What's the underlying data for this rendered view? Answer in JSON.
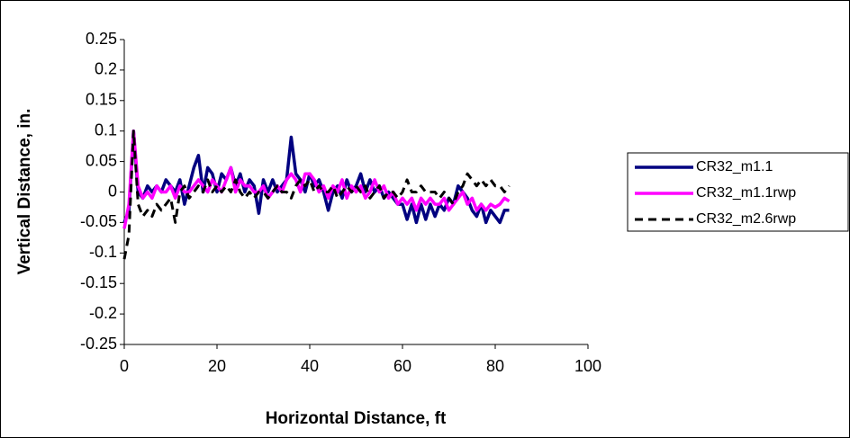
{
  "chart_data": {
    "type": "line",
    "x_label": "Horizontal Distance, ft",
    "y_label": "Vertical Distance, in.",
    "x": [
      0,
      1,
      2,
      3,
      4,
      5,
      6,
      7,
      8,
      9,
      10,
      11,
      12,
      13,
      14,
      15,
      16,
      17,
      18,
      19,
      20,
      21,
      22,
      23,
      24,
      25,
      26,
      27,
      28,
      29,
      30,
      31,
      32,
      33,
      34,
      35,
      36,
      37,
      38,
      39,
      40,
      41,
      42,
      43,
      44,
      45,
      46,
      47,
      48,
      49,
      50,
      51,
      52,
      53,
      54,
      55,
      56,
      57,
      58,
      59,
      60,
      61,
      62,
      63,
      64,
      65,
      66,
      67,
      68,
      69,
      70,
      71,
      72,
      73,
      74,
      75,
      76,
      77,
      78,
      79,
      80,
      81,
      82,
      83
    ],
    "series": [
      {
        "name": "CR32_m1.1",
        "color": "#000080",
        "dash": false,
        "values": [
          -0.05,
          -0.03,
          0.1,
          0.0,
          -0.01,
          0.01,
          0.0,
          0.01,
          0.0,
          0.02,
          0.01,
          0.0,
          0.02,
          -0.02,
          0.01,
          0.04,
          0.06,
          0.0,
          0.04,
          0.03,
          0.0,
          0.03,
          0.02,
          0.04,
          0.01,
          0.03,
          0.0,
          0.02,
          0.01,
          -0.035,
          0.02,
          0.0,
          0.02,
          0.0,
          0.01,
          0.02,
          0.09,
          0.03,
          0.02,
          0.0,
          0.03,
          0.01,
          0.02,
          0.0,
          -0.03,
          0.0,
          0.01,
          -0.01,
          0.02,
          0.0,
          0.01,
          0.03,
          0.0,
          0.02,
          0.0,
          0.01,
          -0.01,
          0.0,
          -0.01,
          -0.02,
          -0.02,
          -0.045,
          -0.02,
          -0.05,
          -0.02,
          -0.045,
          -0.02,
          -0.04,
          -0.02,
          -0.03,
          -0.01,
          -0.02,
          0.01,
          0.0,
          -0.01,
          -0.03,
          -0.04,
          -0.02,
          -0.05,
          -0.03,
          -0.04,
          -0.05,
          -0.03,
          -0.03
        ]
      },
      {
        "name": "CR32_m1.1rwp",
        "color": "#ff00ff",
        "dash": false,
        "values": [
          -0.06,
          -0.02,
          0.1,
          0.01,
          -0.01,
          0.0,
          -0.01,
          0.01,
          0.0,
          0.0,
          0.01,
          -0.01,
          0.01,
          0.0,
          0.0,
          0.01,
          0.02,
          0.01,
          0.0,
          0.02,
          0.01,
          0.0,
          0.02,
          0.04,
          0.0,
          0.02,
          0.01,
          0.01,
          0.0,
          0.0,
          0.01,
          -0.01,
          0.0,
          0.01,
          0.0,
          0.02,
          0.03,
          0.02,
          0.0,
          0.03,
          0.03,
          0.02,
          0.0,
          0.01,
          -0.01,
          0.01,
          0.0,
          0.02,
          -0.01,
          0.01,
          0.0,
          0.01,
          -0.01,
          0.0,
          0.02,
          0.0,
          0.01,
          -0.01,
          0.0,
          -0.02,
          -0.01,
          -0.02,
          -0.01,
          -0.03,
          -0.01,
          -0.02,
          -0.01,
          -0.02,
          -0.02,
          -0.01,
          -0.03,
          -0.02,
          -0.01,
          0.0,
          -0.02,
          -0.01,
          -0.03,
          -0.02,
          -0.03,
          -0.02,
          -0.025,
          -0.02,
          -0.01,
          -0.015
        ]
      },
      {
        "name": "CR32_m2.6rwp",
        "color": "#000000",
        "dash": true,
        "values": [
          -0.11,
          -0.07,
          0.1,
          -0.02,
          -0.04,
          -0.03,
          -0.04,
          -0.02,
          -0.03,
          -0.02,
          -0.01,
          -0.05,
          0.0,
          0.01,
          -0.01,
          0.0,
          0.01,
          0.0,
          0.02,
          0.0,
          0.01,
          0.0,
          0.01,
          0.0,
          0.02,
          0.0,
          -0.01,
          0.0,
          -0.01,
          0.0,
          0.0,
          -0.01,
          0.0,
          0.01,
          0.0,
          0.0,
          -0.01,
          0.01,
          0.02,
          0.01,
          0.02,
          0.0,
          0.01,
          0.0,
          0.0,
          0.01,
          -0.01,
          0.0,
          0.01,
          0.0,
          0.01,
          0.0,
          0.01,
          -0.01,
          0.0,
          0.01,
          -0.01,
          0.0,
          0.0,
          -0.01,
          0.0,
          0.02,
          0.0,
          0.0,
          0.01,
          0.0,
          0.0,
          0.0,
          -0.01,
          0.0,
          -0.01,
          -0.02,
          0.0,
          0.01,
          0.03,
          0.02,
          0.01,
          0.02,
          0.01,
          0.02,
          0.01,
          0.01,
          0.0,
          0.01
        ]
      }
    ],
    "xlim": [
      0,
      100
    ],
    "xticks": [
      0,
      20,
      40,
      60,
      80,
      100
    ],
    "ylim": [
      -0.25,
      0.25
    ],
    "yticks": [
      0.25,
      0.2,
      0.15,
      0.1,
      0.05,
      0,
      -0.05,
      -0.1,
      -0.15,
      -0.2,
      -0.25
    ],
    "grid": false,
    "legend": "right"
  }
}
